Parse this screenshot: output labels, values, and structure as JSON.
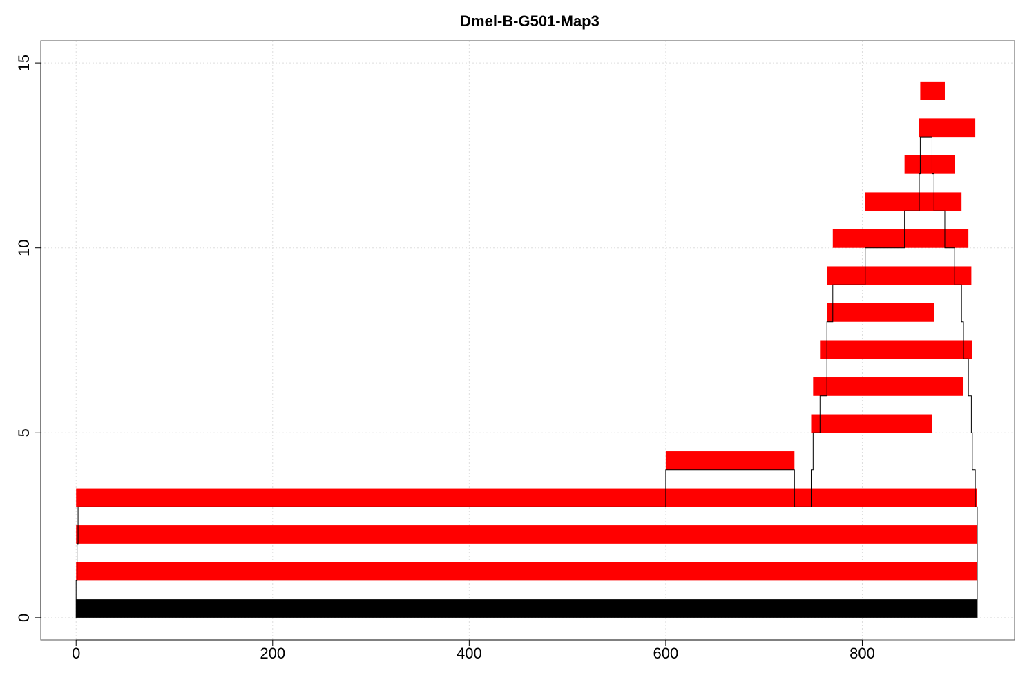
{
  "chart_data": {
    "type": "bar",
    "title": "Dmel-B-G501-Map3",
    "xlabel": "",
    "ylabel": "",
    "xlim": [
      -36,
      955
    ],
    "ylim": [
      -0.6,
      15.6
    ],
    "x_ticks": [
      0,
      200,
      400,
      600,
      800
    ],
    "y_ticks": [
      0,
      5,
      10,
      15
    ],
    "grid": true,
    "reference_bar": {
      "start": 0,
      "end": 917,
      "level": 0,
      "color": "#000000"
    },
    "bar_color": "#ff0000",
    "bars": [
      {
        "start": 0,
        "end": 917,
        "level": 1
      },
      {
        "start": 0,
        "end": 917,
        "level": 2
      },
      {
        "start": 0,
        "end": 917,
        "level": 3
      },
      {
        "start": 600,
        "end": 731,
        "level": 4
      },
      {
        "start": 748,
        "end": 871,
        "level": 5
      },
      {
        "start": 750,
        "end": 903,
        "level": 6
      },
      {
        "start": 757,
        "end": 912,
        "level": 7
      },
      {
        "start": 764,
        "end": 873,
        "level": 8
      },
      {
        "start": 764,
        "end": 911,
        "level": 9
      },
      {
        "start": 770,
        "end": 908,
        "level": 10
      },
      {
        "start": 803,
        "end": 901,
        "level": 11
      },
      {
        "start": 843,
        "end": 894,
        "level": 12
      },
      {
        "start": 858,
        "end": 915,
        "level": 13
      },
      {
        "start": 859,
        "end": 884,
        "level": 14
      }
    ],
    "coverage_line": {
      "color": "#000000",
      "x": [
        0,
        0,
        1,
        1,
        2,
        2,
        600,
        600,
        731,
        731,
        748,
        748,
        750,
        750,
        757,
        757,
        764,
        764,
        770,
        770,
        803,
        803,
        843,
        843,
        858,
        858,
        859,
        859,
        871,
        871,
        873,
        873,
        884,
        884,
        894,
        894,
        901,
        901,
        903,
        903,
        908,
        908,
        911,
        911,
        912,
        912,
        915,
        915,
        917,
        917
      ],
      "y": [
        0,
        1,
        1,
        2,
        2,
        3,
        3,
        4,
        4,
        3,
        3,
        4,
        4,
        5,
        5,
        6,
        6,
        8,
        8,
        9,
        9,
        10,
        10,
        11,
        11,
        12,
        12,
        13,
        13,
        12,
        12,
        11,
        11,
        10,
        10,
        9,
        9,
        8,
        8,
        7,
        7,
        6,
        6,
        5,
        5,
        4,
        4,
        3,
        3,
        0
      ]
    }
  }
}
